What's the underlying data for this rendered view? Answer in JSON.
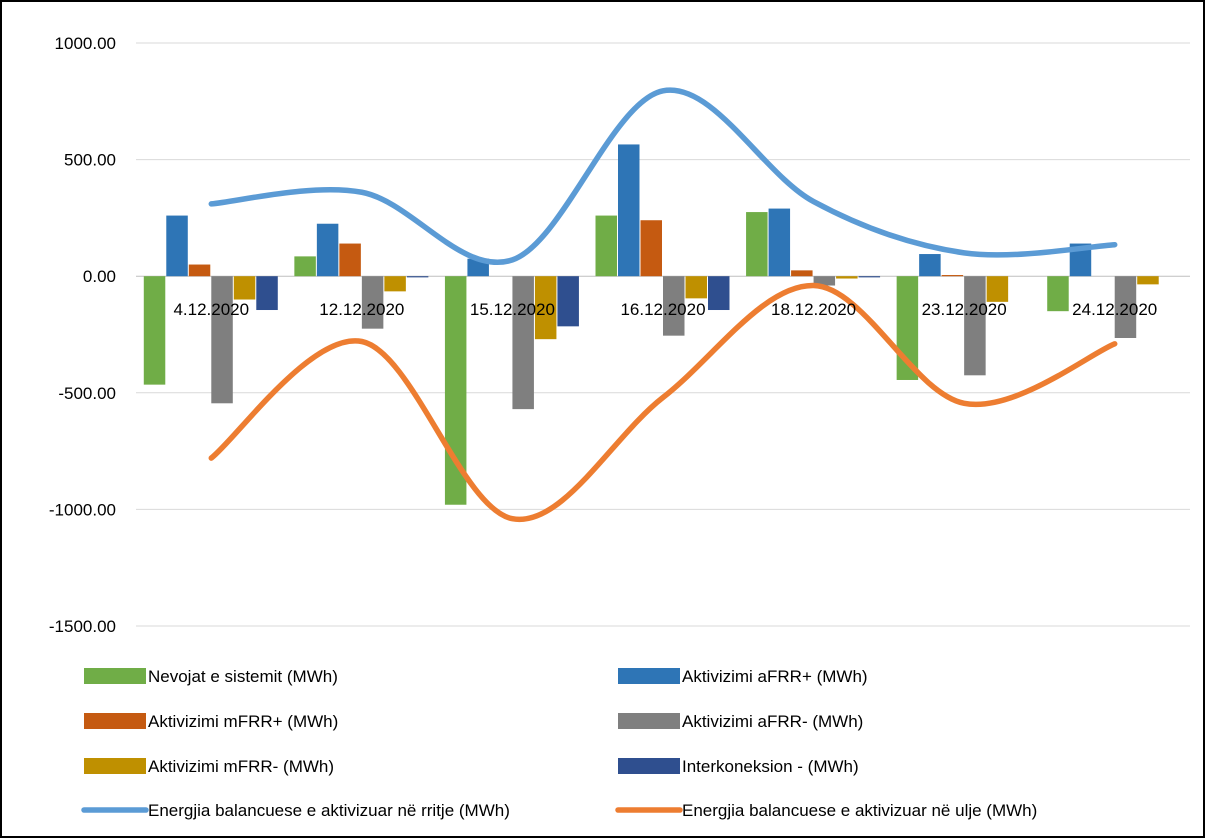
{
  "chart_data": {
    "type": "bar",
    "title": "",
    "xlabel": "",
    "ylabel": "",
    "ylim": [
      -1500,
      1000
    ],
    "yticks": [
      1000,
      500,
      0,
      -500,
      -1000,
      -1500
    ],
    "ytick_labels": [
      "1000.00",
      "500.00",
      "0.00",
      "-500.00",
      "-1000.00",
      "-1500.00"
    ],
    "grid": true,
    "legend_position": "bottom",
    "categories": [
      "4.12.2020",
      "12.12.2020",
      "15.12.2020",
      "16.12.2020",
      "18.12.2020",
      "23.12.2020",
      "24.12.2020"
    ],
    "series": [
      {
        "name": "Nevojat e sistemit (MWh)",
        "kind": "bar",
        "color": "#70ad47",
        "values": [
          -465,
          85,
          -980,
          260,
          275,
          -445,
          -150
        ]
      },
      {
        "name": "Aktivizimi aFRR+ (MWh)",
        "kind": "bar",
        "color": "#2e75b6",
        "values": [
          260,
          225,
          75,
          565,
          290,
          95,
          140
        ]
      },
      {
        "name": "Aktivizimi mFRR+ (MWh)",
        "kind": "bar",
        "color": "#c55a11",
        "values": [
          50,
          140,
          0,
          240,
          25,
          5,
          0
        ]
      },
      {
        "name": "Aktivizimi aFRR- (MWh)",
        "kind": "bar",
        "color": "#7f7f7f",
        "values": [
          -545,
          -225,
          -570,
          -255,
          -40,
          -425,
          -265
        ]
      },
      {
        "name": "Aktivizimi mFRR- (MWh)",
        "kind": "bar",
        "color": "#bf9000",
        "values": [
          -100,
          -65,
          -270,
          -95,
          -10,
          -110,
          -35
        ]
      },
      {
        "name": "Interkoneksion - (MWh)",
        "kind": "bar",
        "color": "#2f4f8f",
        "values": [
          -145,
          -5,
          -215,
          -145,
          -5,
          0,
          0
        ]
      },
      {
        "name": "Energjia balancuese e aktivizuar në rritje (MWh)",
        "kind": "line",
        "color": "#5b9bd5",
        "values": [
          310,
          360,
          70,
          795,
          320,
          100,
          135
        ]
      },
      {
        "name": "Energjia balancuese e aktivizuar në ulje (MWh)",
        "kind": "line",
        "color": "#ed7d31",
        "values": [
          -780,
          -280,
          -1040,
          -520,
          -40,
          -545,
          -290
        ]
      }
    ]
  }
}
